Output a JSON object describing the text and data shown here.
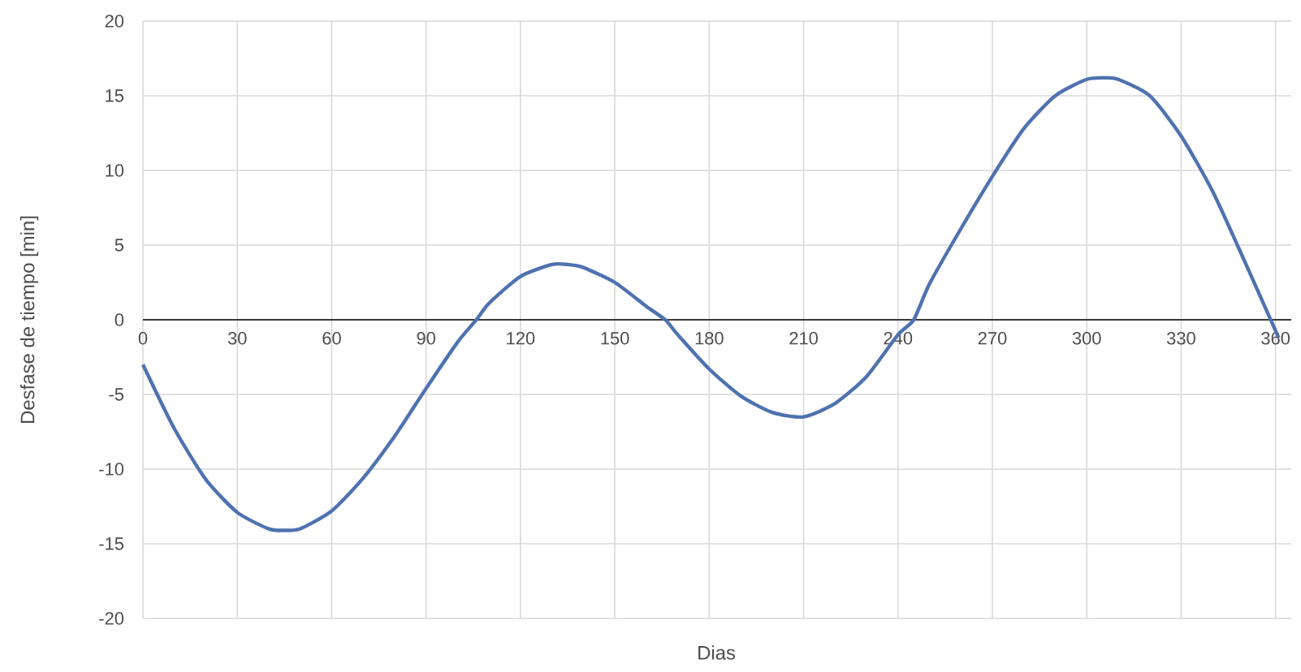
{
  "chart_data": {
    "type": "line",
    "xlabel": "Dias",
    "ylabel": "Desfase de tiempo [min]",
    "xlim": [
      0,
      365
    ],
    "ylim": [
      -20,
      20
    ],
    "xticks": [
      0,
      30,
      60,
      90,
      120,
      150,
      180,
      210,
      240,
      270,
      300,
      330,
      360
    ],
    "yticks": [
      -20,
      -15,
      -10,
      -5,
      0,
      5,
      10,
      15,
      20
    ],
    "grid": true,
    "color": "#4f72b0",
    "x": [
      0,
      10,
      20,
      30,
      40,
      45,
      50,
      60,
      70,
      80,
      90,
      100,
      106,
      110,
      120,
      130,
      135,
      140,
      150,
      160,
      166,
      170,
      180,
      190,
      200,
      210,
      220,
      230,
      240,
      245,
      250,
      260,
      270,
      280,
      290,
      300,
      306,
      310,
      320,
      330,
      340,
      350,
      361
    ],
    "values": [
      -3.0,
      -7.3,
      -10.7,
      -12.9,
      -14.0,
      -14.1,
      -14.0,
      -12.8,
      -10.6,
      -7.8,
      -4.6,
      -1.5,
      0,
      1.1,
      2.9,
      3.7,
      3.7,
      3.5,
      2.5,
      0.9,
      0,
      -1.0,
      -3.3,
      -5.1,
      -6.2,
      -6.5,
      -5.6,
      -3.8,
      -1.0,
      0,
      2.4,
      6.1,
      9.6,
      12.8,
      15.0,
      16.1,
      16.2,
      16.1,
      15.0,
      12.3,
      8.6,
      4.0,
      -1.2
    ]
  }
}
